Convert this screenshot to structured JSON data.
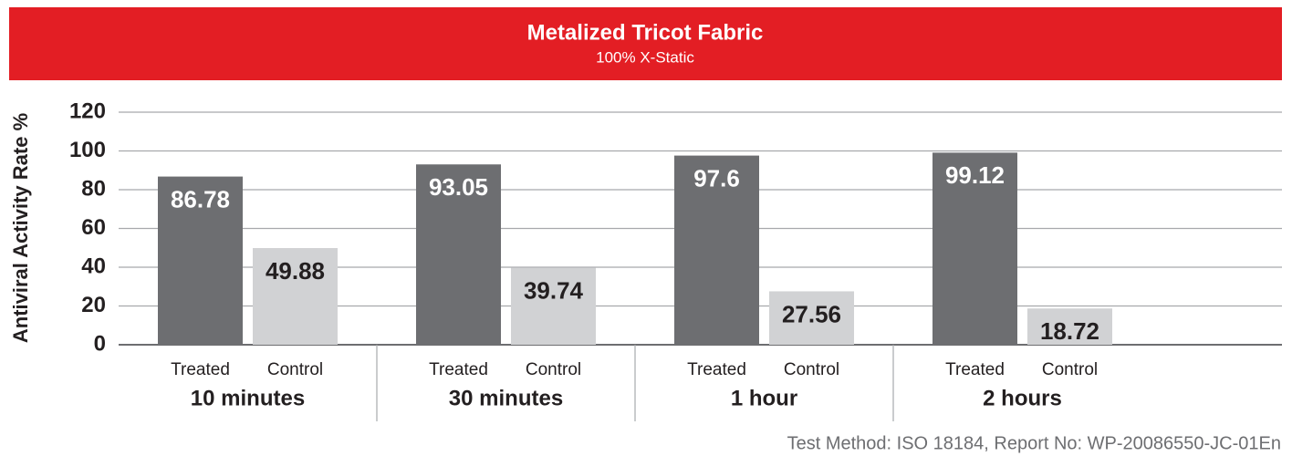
{
  "chart_data": {
    "type": "bar",
    "title": "Metalized Tricot Fabric",
    "subtitle": "100% X-Static",
    "y_label": "Antiviral Activity Rate %",
    "categories": [
      "10 minutes",
      "30 minutes",
      "1 hour",
      "2 hours"
    ],
    "series": [
      {
        "name": "Treated",
        "color": "#6d6e71",
        "values": [
          86.78,
          93.05,
          97.6,
          99.12
        ]
      },
      {
        "name": "Control",
        "color": "#d1d2d4",
        "values": [
          49.88,
          39.74,
          27.56,
          18.72
        ]
      }
    ],
    "ylim": [
      0,
      120
    ],
    "yticks": [
      0,
      20,
      40,
      60,
      80,
      100,
      120
    ],
    "grid": true,
    "footnote": "Test Method: ISO 18184, Report No: WP-20086550-JC-01En"
  }
}
